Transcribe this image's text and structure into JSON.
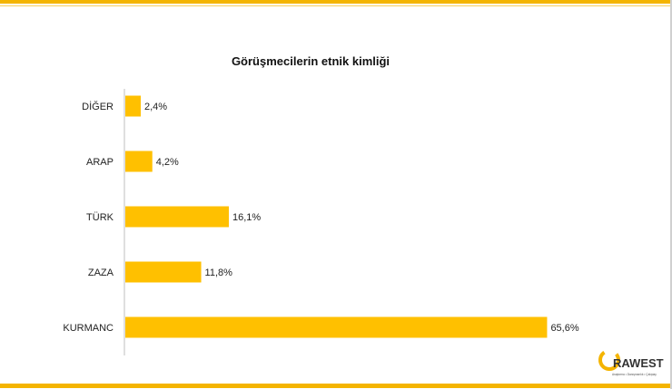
{
  "chart_data": {
    "type": "bar",
    "orientation": "horizontal",
    "title": "Görüşmecilerin etnik kimliği",
    "categories": [
      "DİĞER",
      "ARAP",
      "TÜRK",
      "ZAZA",
      "KURMANC"
    ],
    "values": [
      2.4,
      4.2,
      16.1,
      11.8,
      65.6
    ],
    "data_labels": [
      "2,4%",
      "4,2%",
      "16,1%",
      "11,8%",
      "65,6%"
    ],
    "xlim": [
      0,
      100
    ],
    "grid": false,
    "legend": "none",
    "bar_color": "#ffc000"
  },
  "logo": {
    "text": "RAWEST",
    "tagline": "Araştırma • Danışmanlık • Çalıştay",
    "color_accent": "#f4b400",
    "color_text": "#333333"
  },
  "frame_colors": {
    "accent": "#f4b400"
  }
}
